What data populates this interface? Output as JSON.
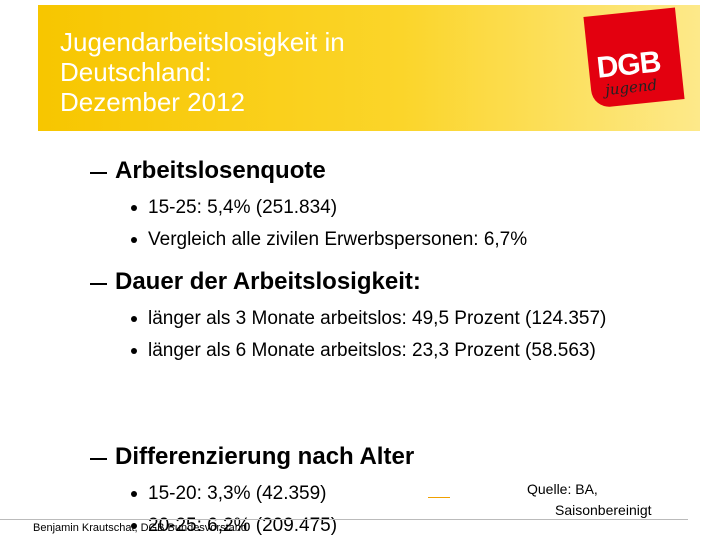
{
  "header": {
    "title": [
      "Jugendarbeitslosigkeit in",
      "Deutschland:",
      "Dezember 2012"
    ],
    "logo": "DGB",
    "logo_sub": "jugend"
  },
  "sections": [
    {
      "heading": "Arbeitslosenquote",
      "bullets": [
        "15-25: 5,4% (251.834)",
        "Vergleich alle zivilen Erwerbspersonen: 6,7%"
      ]
    },
    {
      "heading": "Dauer der Arbeitslosigkeit:",
      "bullets": [
        "länger als 3 Monate arbeitslos: 49,5 Prozent (124.357)",
        "länger als 6 Monate arbeitslos: 23,3 Prozent (58.563)"
      ]
    },
    {
      "heading": "Differenzierung nach Alter",
      "bullets": [
        "15-20: 3,3% (42.359)",
        "20-25: 6,2% (209.475)"
      ]
    }
  ],
  "source": [
    "Quelle: BA,",
    "Saisonbereinigt"
  ],
  "footer": "Benjamin Krautschat, DGB Bundesvorstand"
}
